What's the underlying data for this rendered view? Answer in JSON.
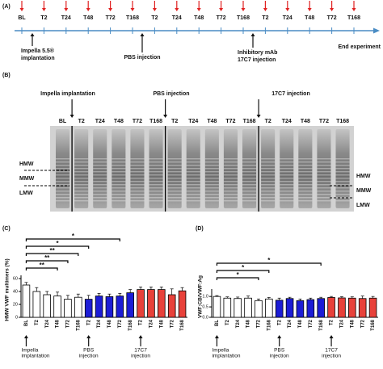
{
  "panel_a": {
    "label": "(A)",
    "timepoints": [
      "BL",
      "T2",
      "T24",
      "T48",
      "T72",
      "T168",
      "T2",
      "T24",
      "T48",
      "T72",
      "T168",
      "T2",
      "T24",
      "T48",
      "T72",
      "T168"
    ],
    "annotations": [
      {
        "lines": [
          "Impella 5.5®",
          "implantation"
        ]
      },
      {
        "lines": [
          "PBS injection"
        ]
      },
      {
        "lines": [
          "Inhibitory mAb",
          "17C7 injection"
        ]
      }
    ],
    "end_label": "End experiment"
  },
  "panel_b": {
    "label": "(B)",
    "events": [
      "Impella implantation",
      "PBS injection",
      "17C7 injection"
    ],
    "lanes": [
      "BL",
      "T2",
      "T24",
      "T48",
      "T72",
      "T168",
      "T2",
      "T24",
      "T48",
      "T72",
      "T168",
      "T2",
      "T24",
      "T48",
      "T72",
      "T168"
    ],
    "left_markers": [
      "HMW",
      "MMW",
      "LMW"
    ],
    "right_markers": [
      "HMW",
      "MMW",
      "LMW"
    ]
  },
  "chart_data": [
    {
      "type": "bar",
      "panel_label": "(C)",
      "y_label": "HMW VWF multimers (%)",
      "categories": [
        "BL",
        "T2",
        "T24",
        "T48",
        "T72",
        "T168",
        "T2",
        "T24",
        "T48",
        "T72",
        "T168",
        "T2",
        "T24",
        "T48",
        "T72",
        "T168"
      ],
      "values": [
        50,
        40,
        35,
        33,
        28,
        31,
        28,
        33,
        32,
        33,
        38,
        43,
        43,
        43,
        35,
        41
      ],
      "errors": [
        4,
        6,
        5,
        6,
        6,
        5,
        6,
        4,
        4,
        4,
        5,
        4,
        4,
        4,
        9,
        5
      ],
      "colors": [
        "#ffffff",
        "#ffffff",
        "#ffffff",
        "#ffffff",
        "#ffffff",
        "#ffffff",
        "#1c1cd6",
        "#1c1cd6",
        "#1c1cd6",
        "#1c1cd6",
        "#1c1cd6",
        "#e8413a",
        "#e8413a",
        "#e8413a",
        "#e8413a",
        "#e8413a"
      ],
      "ylim": [
        0,
        60
      ],
      "yticks": [
        0,
        20,
        40,
        60
      ],
      "brackets": [
        {
          "from": 0,
          "to": 9,
          "label": "*"
        },
        {
          "from": 0,
          "to": 6,
          "label": "*"
        },
        {
          "from": 0,
          "to": 5,
          "label": "**"
        },
        {
          "from": 0,
          "to": 4,
          "label": "**"
        },
        {
          "from": 0,
          "to": 3,
          "label": "**"
        }
      ],
      "annotations": [
        {
          "index": 0,
          "lines": [
            "Impella",
            "implantation"
          ]
        },
        {
          "index": 6,
          "lines": [
            "PBS",
            "injection"
          ]
        },
        {
          "index": 11,
          "lines": [
            "17C7",
            "injection"
          ]
        }
      ]
    },
    {
      "type": "bar",
      "panel_label": "(D)",
      "y_label": "VWF:CB/VWF:Ag",
      "categories": [
        "BL",
        "T2",
        "T24",
        "T48",
        "T72",
        "T168",
        "T2",
        "T24",
        "T48",
        "T72",
        "T168",
        "T2",
        "T24",
        "T48",
        "T72",
        "T168"
      ],
      "values": [
        1.0,
        0.92,
        0.9,
        0.92,
        0.8,
        0.88,
        0.82,
        0.9,
        0.8,
        0.85,
        0.9,
        0.95,
        0.93,
        0.92,
        0.9,
        0.92
      ],
      "errors": [
        0.04,
        0.06,
        0.07,
        0.1,
        0.08,
        0.07,
        0.1,
        0.06,
        0.08,
        0.07,
        0.06,
        0.05,
        0.06,
        0.06,
        0.12,
        0.08
      ],
      "colors": [
        "#ffffff",
        "#ffffff",
        "#ffffff",
        "#ffffff",
        "#ffffff",
        "#ffffff",
        "#1c1cd6",
        "#1c1cd6",
        "#1c1cd6",
        "#1c1cd6",
        "#1c1cd6",
        "#e8413a",
        "#e8413a",
        "#e8413a",
        "#e8413a",
        "#e8413a"
      ],
      "ylim": [
        0,
        1.2
      ],
      "yticks": [
        {
          "value": 0,
          "label": "0.0"
        },
        0.5,
        {
          "value": 1,
          "label": "1.0"
        }
      ],
      "brackets": [
        {
          "from": 0,
          "to": 10,
          "label": "*"
        },
        {
          "from": 0,
          "to": 5,
          "label": "*"
        },
        {
          "from": 0,
          "to": 4,
          "label": "*"
        }
      ],
      "annotations": [
        {
          "index": 0,
          "lines": [
            "Impella",
            "implantation"
          ]
        },
        {
          "index": 6,
          "lines": [
            "PBS",
            "injection"
          ]
        },
        {
          "index": 11,
          "lines": [
            "17C7",
            "injection"
          ]
        }
      ]
    }
  ]
}
